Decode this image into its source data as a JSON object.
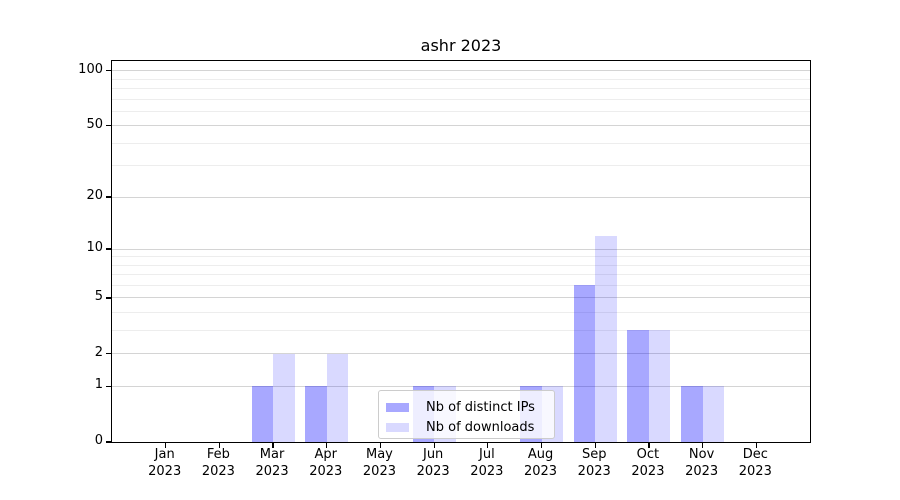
{
  "chart_data": {
    "type": "bar",
    "title": "ashr 2023",
    "categories": [
      "Jan",
      "Feb",
      "Mar",
      "Apr",
      "May",
      "Jun",
      "Jul",
      "Aug",
      "Sep",
      "Oct",
      "Nov",
      "Dec"
    ],
    "year_label": "2023",
    "series": [
      {
        "name": "Nb of distinct IPs",
        "color": "rgba(0,0,255,0.34)",
        "values": [
          0,
          0,
          1,
          1,
          0,
          1,
          0,
          1,
          6,
          3,
          1,
          0
        ]
      },
      {
        "name": "Nb of downloads",
        "color": "rgba(0,0,255,0.15)",
        "values": [
          0,
          0,
          2,
          2,
          0,
          1,
          0,
          1,
          12,
          3,
          1,
          0
        ]
      }
    ],
    "y_scale": "log10(1+x)",
    "y_major_ticks": [
      0,
      1,
      2,
      5,
      10,
      20,
      50,
      100
    ],
    "y_minor_ticks": [
      3,
      4,
      6,
      7,
      8,
      9,
      30,
      40,
      60,
      70,
      80,
      90
    ],
    "ylim": [
      0,
      113
    ],
    "grid": true,
    "legend_position": "lower center",
    "colors": {
      "axis": "#000000",
      "grid_major": "#d4d4d4",
      "grid_minor": "#ededed"
    }
  }
}
